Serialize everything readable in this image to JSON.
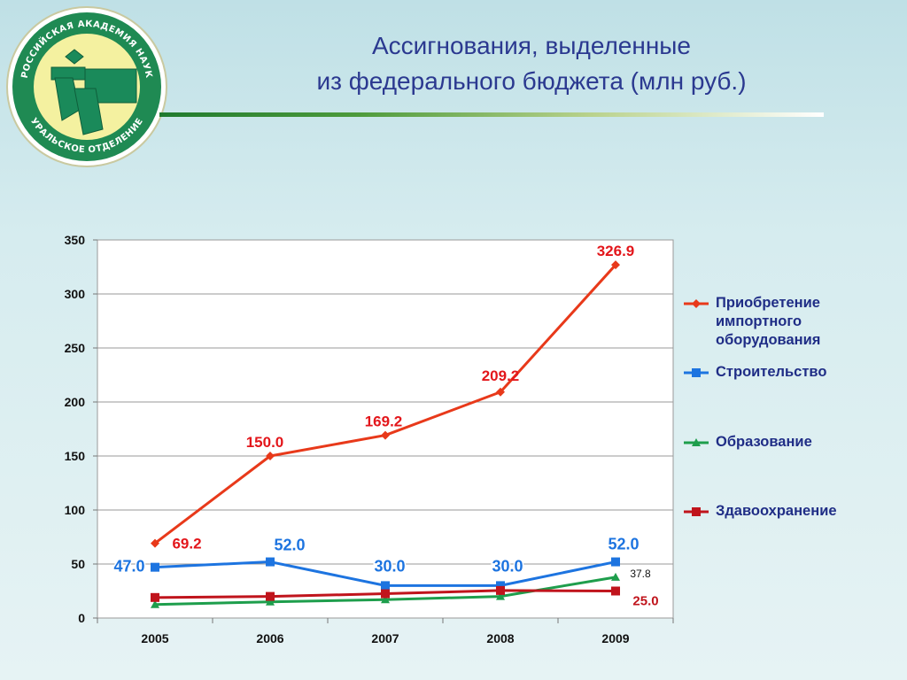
{
  "logo": {
    "top_text": "РОССИЙСКАЯ АКАДЕМИЯ НАУК",
    "bottom_text": "УРАЛЬСКОЕ ОТДЕЛЕНИЕ",
    "ring_color": "#1f8a53",
    "center_color": "#f4f1a0"
  },
  "header": {
    "title_line1": "Ассигнования, выделенные",
    "title_line2": "из федерального бюджета (млн руб.)"
  },
  "chart_data": {
    "type": "line",
    "categories": [
      "2005",
      "2006",
      "2007",
      "2008",
      "2009"
    ],
    "ylim": [
      0,
      350
    ],
    "y_ticks": [
      "0",
      "50",
      "100",
      "150",
      "200",
      "250",
      "300",
      "350"
    ],
    "grid": true,
    "legend_position": "right",
    "series": [
      {
        "name": "Приобретение импортного оборудования",
        "color": "#e8391a",
        "label_color": "#e3161b",
        "marker": "diamond",
        "values": [
          69.2,
          150.0,
          169.2,
          209.2,
          326.9
        ],
        "labels": [
          "69.2",
          "150.0",
          "169.2",
          "209.2",
          "326.9"
        ]
      },
      {
        "name": "Строительство",
        "color": "#1d74e0",
        "label_color": "#1d74e0",
        "marker": "square",
        "values": [
          47.0,
          52.0,
          30.0,
          30.0,
          52.0
        ],
        "labels": [
          "47.0",
          "52.0",
          "30.0",
          "30.0",
          "52.0"
        ]
      },
      {
        "name": "Образование",
        "color": "#1e9e4c",
        "label_color": "#111111",
        "marker": "triangle",
        "values": [
          12.5,
          15.0,
          17.0,
          20.0,
          37.8
        ],
        "labels": [
          "",
          "",
          "",
          "",
          "37.8"
        ]
      },
      {
        "name": "Здавоохранение",
        "color": "#c0141c",
        "label_color": "#c0141c",
        "marker": "square",
        "values": [
          19.0,
          20.0,
          22.5,
          25.5,
          25.0
        ],
        "labels": [
          "",
          "",
          "",
          "",
          "25.0"
        ]
      }
    ]
  }
}
